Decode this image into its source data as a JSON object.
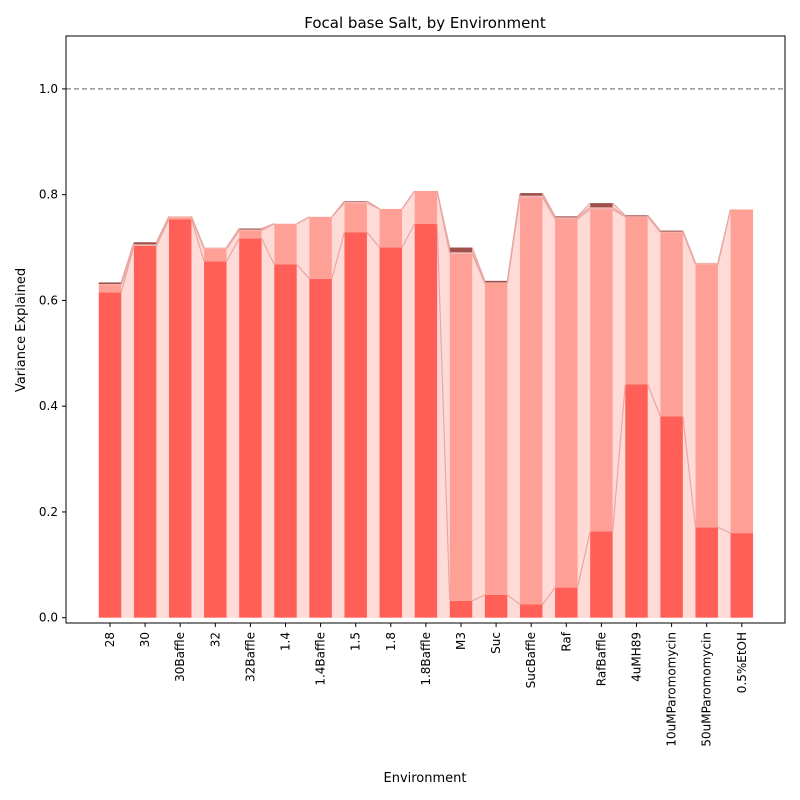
{
  "chart_data": {
    "type": "bar",
    "title": "Focal base Salt, by Environment",
    "xlabel": "Environment",
    "ylabel": "Variance Explained",
    "ylim": [
      -0.01,
      1.1
    ],
    "y_ticks": [
      "0.0",
      "0.2",
      "0.4",
      "0.6",
      "0.8",
      "1.0"
    ],
    "reference_line": 1.0,
    "categories": [
      "28",
      "30",
      "30Baffle",
      "32",
      "32Baffle",
      "1.4",
      "1.4Baffle",
      "1.5",
      "1.8",
      "1.8Baffle",
      "M3",
      "Suc",
      "SucBaffle",
      "Raf",
      "RafBaffle",
      "4uMH89",
      "10uMParomomycin",
      "50uMParomomycin",
      "0.5%EtOH"
    ],
    "series": [
      {
        "color": "#ff5f57",
        "values": [
          0.615,
          0.703,
          0.753,
          0.674,
          0.717,
          0.668,
          0.641,
          0.729,
          0.7,
          0.745,
          0.032,
          0.043,
          0.025,
          0.057,
          0.163,
          0.441,
          0.381,
          0.171,
          0.16
        ]
      },
      {
        "color": "#ffa096",
        "values": [
          0.014,
          0.0,
          0.004,
          0.024,
          0.015,
          0.077,
          0.117,
          0.055,
          0.073,
          0.062,
          0.656,
          0.589,
          0.77,
          0.697,
          0.609,
          0.317,
          0.348,
          0.497,
          0.612
        ]
      },
      {
        "color": "#f0b4ae",
        "values": [
          0.002,
          0.003,
          0.002,
          0.002,
          0.002,
          0.0,
          0.0,
          0.003,
          0.0,
          0.0,
          0.003,
          0.002,
          0.003,
          0.003,
          0.004,
          0.001,
          0.001,
          0.003,
          0.0
        ]
      },
      {
        "color": "#a0504a",
        "values": [
          0.003,
          0.004,
          0.0,
          0.0,
          0.002,
          0.0,
          0.0,
          0.001,
          0.0,
          0.0,
          0.009,
          0.003,
          0.005,
          0.002,
          0.008,
          0.002,
          0.002,
          0.0,
          0.0
        ]
      }
    ],
    "grid": false,
    "legend": "none"
  }
}
